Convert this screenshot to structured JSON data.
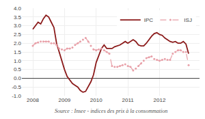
{
  "chart_data": {
    "type": "line",
    "categories": [
      "2008",
      null,
      null,
      null,
      null,
      null,
      null,
      null,
      null,
      null,
      null,
      null,
      "2009",
      null,
      null,
      null,
      null,
      null,
      null,
      null,
      null,
      null,
      null,
      null,
      "2010",
      null,
      null,
      null,
      null,
      null,
      null,
      null,
      null,
      null,
      null,
      null,
      "2011",
      null,
      null,
      null,
      null,
      null,
      null,
      null,
      null,
      null,
      null,
      null,
      "2012",
      null,
      null,
      null,
      null,
      null,
      null,
      null,
      null,
      null,
      null,
      null
    ],
    "series": [
      {
        "name": "IPC",
        "color": "#8B1A1A",
        "line_style": "solid",
        "values": [
          2.8,
          3.0,
          3.2,
          3.1,
          3.4,
          3.6,
          3.5,
          3.2,
          2.9,
          2.0,
          1.5,
          0.9,
          0.5,
          0.1,
          -0.1,
          -0.3,
          -0.4,
          -0.5,
          -0.7,
          -0.8,
          -0.75,
          -0.5,
          -0.2,
          0.2,
          0.9,
          1.3,
          1.7,
          1.9,
          1.7,
          1.7,
          1.7,
          1.8,
          1.85,
          1.9,
          2.0,
          2.1,
          2.0,
          2.1,
          2.2,
          2.1,
          1.9,
          1.85,
          1.85,
          2.0,
          2.2,
          2.4,
          2.55,
          2.6,
          2.5,
          2.45,
          2.3,
          2.2,
          2.1,
          2.05,
          2.1,
          2.0,
          2.0,
          2.1,
          1.95,
          1.4
        ]
      },
      {
        "name": "ISJ",
        "color": "#E8A0A8",
        "line_style": "dashed",
        "marker": "circle",
        "values": [
          1.85,
          2.0,
          2.05,
          2.1,
          2.1,
          2.1,
          2.1,
          2.0,
          2.0,
          1.9,
          1.7,
          1.65,
          1.6,
          1.7,
          1.7,
          1.75,
          1.9,
          2.0,
          2.1,
          2.2,
          2.3,
          2.1,
          1.85,
          1.65,
          1.6,
          1.65,
          1.7,
          1.6,
          1.5,
          1.4,
          0.7,
          0.65,
          0.65,
          0.7,
          0.75,
          0.8,
          0.7,
          0.65,
          0.45,
          0.55,
          0.7,
          0.85,
          1.0,
          1.15,
          1.2,
          1.25,
          1.1,
          1.05,
          1.0,
          1.05,
          1.1,
          1.05,
          1.05,
          1.4,
          1.5,
          1.6,
          1.6,
          1.5,
          1.5,
          0.75
        ]
      }
    ],
    "ylim": [
      -1.0,
      4.0
    ],
    "yticks": [
      {
        "value": -1.0,
        "label": "-1.0"
      },
      -0.5,
      {
        "value": 0.0,
        "label": "0.0"
      },
      0.5,
      {
        "value": 1.0,
        "label": "1.0"
      },
      1.5,
      {
        "value": 2.0,
        "label": "2.0"
      },
      2.5,
      {
        "value": 3.0,
        "label": "3.0"
      },
      3.5,
      {
        "value": 4.0,
        "label": "4.0"
      }
    ],
    "grid": true,
    "legend": "upper right",
    "annotations": [
      "Source : Insee - indices des prix à la consommation"
    ]
  }
}
